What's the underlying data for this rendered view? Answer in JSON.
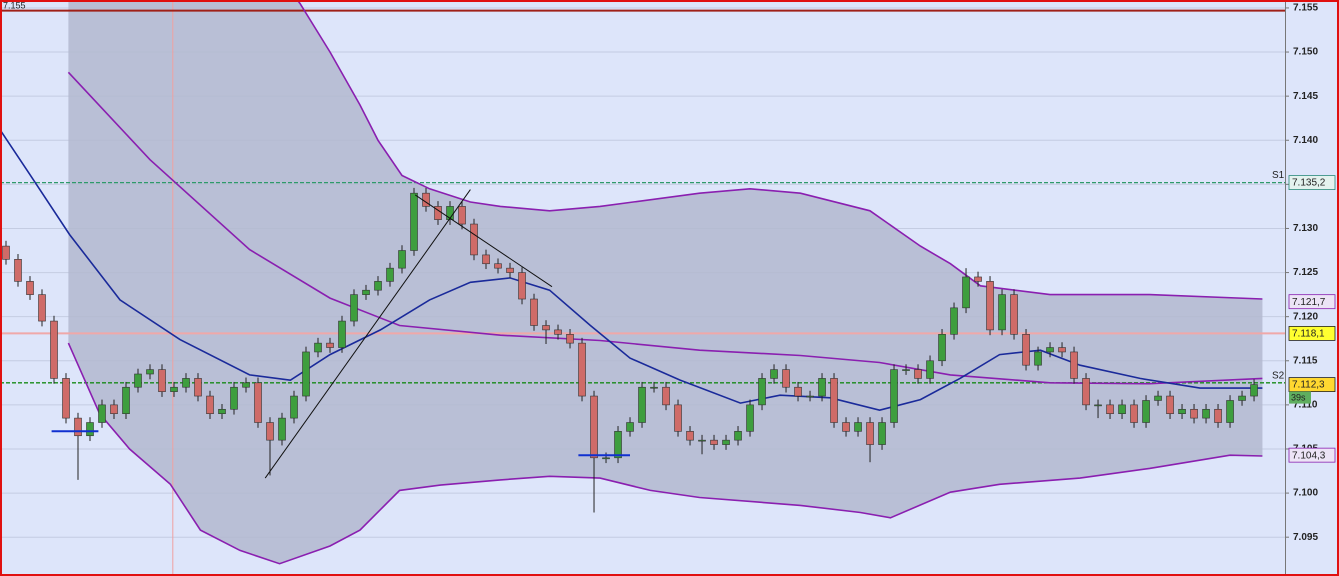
{
  "chart_data": {
    "type": "candlestick",
    "corner_label": "7.155",
    "timer": "39s",
    "background": "#dde5fa",
    "border_color": "#e01010",
    "bull_color": "#3e9e3e",
    "bear_color": "#cf6b68",
    "band_fill": "#b3b9cf",
    "grid": true,
    "xlim": [
      -0.5,
      106.58
    ],
    "ylim": [
      7.0906,
      7.1559
    ],
    "yticks": [
      7.095,
      {
        "value": 7.1,
        "label": "7.100"
      },
      7.105,
      {
        "value": 7.11,
        "label": "7.110"
      },
      7.115,
      {
        "value": 7.12,
        "label": "7.120"
      },
      7.125,
      {
        "value": 7.13,
        "label": "7.130"
      },
      7.135,
      {
        "value": 7.14,
        "label": "7.140"
      },
      7.145,
      {
        "value": 7.15,
        "label": "7.150"
      },
      7.155
    ],
    "candles": [
      [
        7.128,
        7.1286,
        7.1259,
        7.1265
      ],
      [
        7.1265,
        7.1271,
        7.1234,
        7.124
      ],
      [
        7.124,
        7.1246,
        7.1219,
        7.1225
      ],
      [
        7.1225,
        7.1231,
        7.1189,
        7.1195
      ],
      [
        7.1195,
        7.1201,
        7.1124,
        7.113
      ],
      [
        7.113,
        7.1136,
        7.1079,
        7.1085
      ],
      [
        7.1085,
        7.1091,
        7.1015,
        7.1065
      ],
      [
        7.1065,
        7.1086,
        7.1059,
        7.108
      ],
      [
        7.108,
        7.1106,
        7.1074,
        7.11
      ],
      [
        7.11,
        7.1106,
        7.1084,
        7.109
      ],
      [
        7.109,
        7.1126,
        7.1084,
        7.112
      ],
      [
        7.112,
        7.1141,
        7.1114,
        7.1135
      ],
      [
        7.1135,
        7.1146,
        7.1129,
        7.114
      ],
      [
        7.114,
        7.1146,
        7.1109,
        7.1115
      ],
      [
        7.1115,
        7.1126,
        7.1109,
        7.112
      ],
      [
        7.112,
        7.1136,
        7.1114,
        7.113
      ],
      [
        7.113,
        7.1136,
        7.1104,
        7.111
      ],
      [
        7.111,
        7.1116,
        7.1084,
        7.109
      ],
      [
        7.109,
        7.1101,
        7.1084,
        7.1095
      ],
      [
        7.1095,
        7.1126,
        7.1089,
        7.112
      ],
      [
        7.112,
        7.1131,
        7.1114,
        7.1125
      ],
      [
        7.1125,
        7.1131,
        7.1074,
        7.108
      ],
      [
        7.108,
        7.1086,
        7.102,
        7.106
      ],
      [
        7.106,
        7.1091,
        7.1054,
        7.1085
      ],
      [
        7.1085,
        7.1116,
        7.1079,
        7.111
      ],
      [
        7.111,
        7.1166,
        7.1104,
        7.116
      ],
      [
        7.116,
        7.1176,
        7.1154,
        7.117
      ],
      [
        7.117,
        7.1176,
        7.1159,
        7.1165
      ],
      [
        7.1165,
        7.1201,
        7.1159,
        7.1195
      ],
      [
        7.1195,
        7.1231,
        7.1189,
        7.1225
      ],
      [
        7.1225,
        7.1236,
        7.1219,
        7.123
      ],
      [
        7.123,
        7.1246,
        7.1224,
        7.124
      ],
      [
        7.124,
        7.1261,
        7.1234,
        7.1255
      ],
      [
        7.1255,
        7.1281,
        7.1249,
        7.1275
      ],
      [
        7.1275,
        7.1346,
        7.1269,
        7.134
      ],
      [
        7.134,
        7.1346,
        7.1319,
        7.1325
      ],
      [
        7.1325,
        7.1331,
        7.1304,
        7.131
      ],
      [
        7.131,
        7.1331,
        7.1304,
        7.1325
      ],
      [
        7.1325,
        7.1331,
        7.1299,
        7.1305
      ],
      [
        7.1305,
        7.1311,
        7.1264,
        7.127
      ],
      [
        7.127,
        7.1276,
        7.1254,
        7.126
      ],
      [
        7.126,
        7.1266,
        7.1249,
        7.1255
      ],
      [
        7.1255,
        7.1261,
        7.1244,
        7.125
      ],
      [
        7.125,
        7.1256,
        7.1214,
        7.122
      ],
      [
        7.122,
        7.1226,
        7.1184,
        7.119
      ],
      [
        7.119,
        7.1196,
        7.1169,
        7.1185
      ],
      [
        7.1185,
        7.1191,
        7.1174,
        7.118
      ],
      [
        7.118,
        7.1186,
        7.1164,
        7.117
      ],
      [
        7.117,
        7.1176,
        7.1104,
        7.111
      ],
      [
        7.111,
        7.1116,
        7.0978,
        7.104
      ],
      [
        7.104,
        7.1046,
        7.1034,
        7.104
      ],
      [
        7.104,
        7.1076,
        7.1034,
        7.107
      ],
      [
        7.107,
        7.1086,
        7.1064,
        7.108
      ],
      [
        7.108,
        7.1126,
        7.1074,
        7.112
      ],
      [
        7.112,
        7.1126,
        7.1114,
        7.112
      ],
      [
        7.112,
        7.1126,
        7.1094,
        7.11
      ],
      [
        7.11,
        7.1106,
        7.1064,
        7.107
      ],
      [
        7.107,
        7.1076,
        7.1054,
        7.106
      ],
      [
        7.106,
        7.1066,
        7.1044,
        7.106
      ],
      [
        7.106,
        7.1066,
        7.1049,
        7.1055
      ],
      [
        7.1055,
        7.1066,
        7.1049,
        7.106
      ],
      [
        7.106,
        7.1076,
        7.1054,
        7.107
      ],
      [
        7.107,
        7.1106,
        7.1064,
        7.11
      ],
      [
        7.11,
        7.1136,
        7.1094,
        7.113
      ],
      [
        7.113,
        7.1146,
        7.1124,
        7.114
      ],
      [
        7.114,
        7.1146,
        7.1114,
        7.112
      ],
      [
        7.112,
        7.1126,
        7.1104,
        7.111
      ],
      [
        7.111,
        7.1116,
        7.1104,
        7.111
      ],
      [
        7.111,
        7.1136,
        7.1104,
        7.113
      ],
      [
        7.113,
        7.1136,
        7.1074,
        7.108
      ],
      [
        7.108,
        7.1086,
        7.1064,
        7.107
      ],
      [
        7.107,
        7.1086,
        7.1064,
        7.108
      ],
      [
        7.108,
        7.1086,
        7.1035,
        7.1055
      ],
      [
        7.1055,
        7.1086,
        7.1049,
        7.108
      ],
      [
        7.108,
        7.1146,
        7.1074,
        7.114
      ],
      [
        7.114,
        7.1146,
        7.1134,
        7.114
      ],
      [
        7.114,
        7.1146,
        7.1124,
        7.113
      ],
      [
        7.113,
        7.1156,
        7.1124,
        7.115
      ],
      [
        7.115,
        7.1186,
        7.1144,
        7.118
      ],
      [
        7.118,
        7.1216,
        7.1174,
        7.121
      ],
      [
        7.121,
        7.1255,
        7.1204,
        7.1245
      ],
      [
        7.1245,
        7.1251,
        7.1234,
        7.124
      ],
      [
        7.124,
        7.1246,
        7.1179,
        7.1185
      ],
      [
        7.1185,
        7.1231,
        7.1179,
        7.1225
      ],
      [
        7.1225,
        7.1231,
        7.1174,
        7.118
      ],
      [
        7.118,
        7.1186,
        7.1139,
        7.1145
      ],
      [
        7.1145,
        7.1166,
        7.1139,
        7.116
      ],
      [
        7.116,
        7.1171,
        7.1154,
        7.1165
      ],
      [
        7.1165,
        7.1171,
        7.1154,
        7.116
      ],
      [
        7.116,
        7.1166,
        7.1124,
        7.113
      ],
      [
        7.113,
        7.1136,
        7.1094,
        7.11
      ],
      [
        7.11,
        7.1106,
        7.1085,
        7.11
      ],
      [
        7.11,
        7.1106,
        7.1084,
        7.109
      ],
      [
        7.109,
        7.1106,
        7.1084,
        7.11
      ],
      [
        7.11,
        7.1106,
        7.1074,
        7.108
      ],
      [
        7.108,
        7.1111,
        7.1074,
        7.1105
      ],
      [
        7.1105,
        7.1116,
        7.1099,
        7.111
      ],
      [
        7.111,
        7.1116,
        7.1084,
        7.109
      ],
      [
        7.109,
        7.1101,
        7.1084,
        7.1095
      ],
      [
        7.1095,
        7.1101,
        7.1079,
        7.1085
      ],
      [
        7.1085,
        7.1101,
        7.1079,
        7.1095
      ],
      [
        7.1095,
        7.1101,
        7.1074,
        7.108
      ],
      [
        7.108,
        7.1111,
        7.1074,
        7.1105
      ],
      [
        7.1105,
        7.1116,
        7.1099,
        7.111
      ],
      [
        7.111,
        7.1129,
        7.1104,
        7.1123
      ]
    ],
    "indicators": [
      {
        "role": "upper",
        "color": "#8a1fb0",
        "x": [
          5.2,
          15,
          22,
          24.5,
          27,
          29.5,
          31,
          33,
          35.3,
          38.7,
          41.2,
          45.3,
          49.5,
          57.8,
          62,
          66.2,
          72,
          76.2,
          78.7,
          81.2,
          87,
          95.3,
          104.7
        ],
        "values": [
          7.172,
          7.168,
          7.16,
          7.1555,
          7.15,
          7.144,
          7.14,
          7.136,
          7.1345,
          7.133,
          7.1325,
          7.132,
          7.1325,
          7.134,
          7.1345,
          7.134,
          7.132,
          7.128,
          7.126,
          7.1235,
          7.1225,
          7.1225,
          7.122
        ]
      },
      {
        "role": "lower",
        "color": "#8a1fb0",
        "x": [
          5.2,
          7.8,
          10.3,
          13.7,
          16.2,
          19.5,
          22.8,
          27,
          29.5,
          32.8,
          36.2,
          41.2,
          45.3,
          49.5,
          53.7,
          57.8,
          66.2,
          71.2,
          73.7,
          78.7,
          82.8,
          89.5,
          95.3,
          102,
          104.7
        ],
        "values": [
          7.117,
          7.109,
          7.105,
          7.101,
          7.0958,
          7.0935,
          7.092,
          7.094,
          7.0958,
          7.1003,
          7.1009,
          7.1015,
          7.1019,
          7.1017,
          7.1003,
          7.0995,
          7.0986,
          7.0978,
          7.0972,
          7.1001,
          7.101,
          7.1017,
          7.1028,
          7.1043,
          7.1042
        ]
      },
      {
        "role": "line",
        "color": "#8a1fb0",
        "x": [
          5.2,
          12,
          20.3,
          27,
          32.8,
          41.2,
          49.5,
          57.8,
          66.2,
          72.8,
          78.7,
          87,
          95.3,
          104.7
        ],
        "values": [
          7.1477,
          7.1378,
          7.1276,
          7.1221,
          7.119,
          7.1179,
          7.1173,
          7.1162,
          7.1156,
          7.1148,
          7.1134,
          7.1125,
          7.1124,
          7.113
        ]
      },
      {
        "role": "line",
        "color": "#1a2a9a",
        "x": [
          -0.5,
          2,
          5.3,
          9.5,
          14.5,
          20.3,
          23.7,
          27,
          31.2,
          35.3,
          38.7,
          42,
          45.3,
          48.7,
          52,
          56.2,
          61.2,
          64.5,
          68.7,
          72.8,
          76.2,
          79.5,
          82.8,
          86.2,
          89.5,
          94.5,
          99.5,
          104.7
        ],
        "values": [
          7.1412,
          7.1361,
          7.1293,
          7.1219,
          7.1174,
          7.1134,
          7.1128,
          7.1157,
          7.1185,
          7.1219,
          7.1239,
          7.1244,
          7.123,
          7.119,
          7.1153,
          7.1128,
          7.1102,
          7.1111,
          7.1108,
          7.1094,
          7.1106,
          7.113,
          7.1157,
          7.1162,
          7.1145,
          7.113,
          7.1119,
          7.1119
        ]
      }
    ],
    "trend_lines": [
      {
        "color": "#111111",
        "x": [
          21.6,
          38.7
        ],
        "values": [
          7.1017,
          7.1344
        ]
      },
      {
        "color": "#111111",
        "x": [
          34.1,
          45.5
        ],
        "values": [
          7.1338,
          7.1234
        ]
      },
      {
        "color": "#1030d0",
        "x": [
          3.8,
          7.7
        ],
        "values": [
          7.107,
          7.107
        ]
      },
      {
        "color": "#1030d0",
        "x": [
          47.7,
          52
        ],
        "values": [
          7.1043,
          7.1043
        ]
      }
    ],
    "vlines": [
      {
        "x": 13.9,
        "color": "#f0a0a0"
      }
    ],
    "levels": [
      {
        "value": 7.1547,
        "color": "#a02018"
      },
      {
        "value": 7.1352,
        "label": "S1",
        "color": "#2e9a6a",
        "dash": true
      },
      {
        "value": 7.1181,
        "color": "#f0a8a8"
      },
      {
        "value": 7.1125,
        "label": "S2",
        "color": "#188a18",
        "dash": true
      }
    ],
    "price_tags": [
      {
        "value": 7.1352,
        "label": "7.135,2",
        "color": "#2a8a7a",
        "background": "#e4f2ee"
      },
      {
        "value": 7.1217,
        "label": "7.121,7",
        "color": "#8a1fb0",
        "background": "#ece4f6"
      },
      {
        "value": 7.1181,
        "label": "7.118,1",
        "color": "#222222",
        "background": "#ffff30"
      },
      {
        "value": 7.1123,
        "label": "7.112,3",
        "color": "#222222",
        "background": "#ffd830"
      },
      {
        "value": 7.1043,
        "label": "7.104,3",
        "color": "#8a1fb0",
        "background": "#ece4f6"
      }
    ]
  }
}
